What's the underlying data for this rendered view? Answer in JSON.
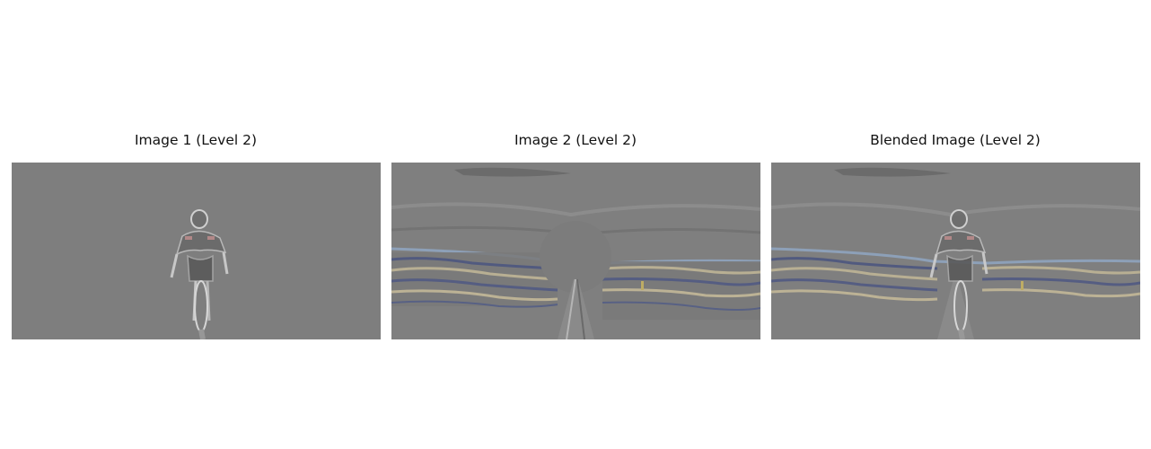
{
  "panels": [
    {
      "title": "Image 1 (Level 2)",
      "content": "cyclist-highpass"
    },
    {
      "title": "Image 2 (Level 2)",
      "content": "road-landscape-highpass"
    },
    {
      "title": "Blended Image (Level 2)",
      "content": "blended-highpass"
    }
  ],
  "colors": {
    "background": "#7e7e7e",
    "accent_blue": "#5b6a9a",
    "accent_tan": "#c2b89c"
  }
}
